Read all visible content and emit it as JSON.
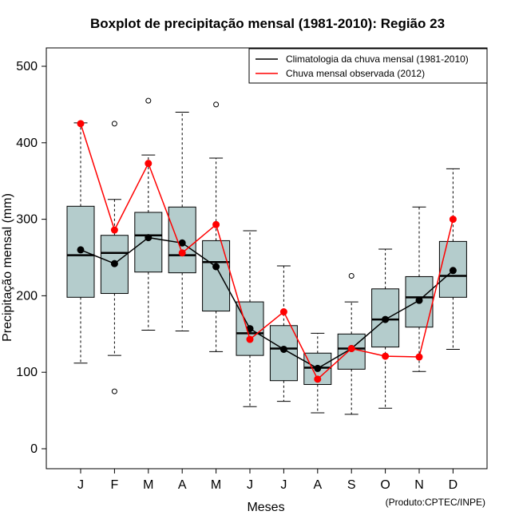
{
  "chart_data": {
    "type": "boxplot",
    "title": "Boxplot de precipitação mensal (1981-2010): Região 23",
    "xlabel": "Meses",
    "ylabel": "Precipitação mensal (mm)",
    "ylim": [
      -25,
      525
    ],
    "yticks": [
      0,
      100,
      200,
      300,
      400,
      500
    ],
    "categories": [
      "J",
      "F",
      "M",
      "A",
      "M",
      "J",
      "J",
      "A",
      "S",
      "O",
      "N",
      "D"
    ],
    "boxes": [
      {
        "whisker_low": 112,
        "q1": 198,
        "median": 253,
        "q3": 317,
        "whisker_high": 426,
        "outliers": []
      },
      {
        "whisker_low": 122,
        "q1": 203,
        "median": 256,
        "q3": 279,
        "whisker_high": 326,
        "outliers": [
          75,
          425
        ]
      },
      {
        "whisker_low": 155,
        "q1": 231,
        "median": 279,
        "q3": 309,
        "whisker_high": 384,
        "outliers": [
          455
        ]
      },
      {
        "whisker_low": 154,
        "q1": 230,
        "median": 253,
        "q3": 316,
        "whisker_high": 440,
        "outliers": []
      },
      {
        "whisker_low": 127,
        "q1": 180,
        "median": 244,
        "q3": 272,
        "whisker_high": 380,
        "outliers": [
          450
        ]
      },
      {
        "whisker_low": 55,
        "q1": 122,
        "median": 151,
        "q3": 192,
        "whisker_high": 285,
        "outliers": []
      },
      {
        "whisker_low": 62,
        "q1": 89,
        "median": 131,
        "q3": 161,
        "whisker_high": 239,
        "outliers": []
      },
      {
        "whisker_low": 47,
        "q1": 84,
        "median": 106,
        "q3": 125,
        "whisker_high": 151,
        "outliers": []
      },
      {
        "whisker_low": 45,
        "q1": 104,
        "median": 131,
        "q3": 150,
        "whisker_high": 192,
        "outliers": [
          226
        ]
      },
      {
        "whisker_low": 53,
        "q1": 133,
        "median": 169,
        "q3": 209,
        "whisker_high": 261,
        "outliers": []
      },
      {
        "whisker_low": 101,
        "q1": 159,
        "median": 198,
        "q3": 225,
        "whisker_high": 316,
        "outliers": []
      },
      {
        "whisker_low": 130,
        "q1": 198,
        "median": 226,
        "q3": 271,
        "whisker_high": 366,
        "outliers": []
      }
    ],
    "series": [
      {
        "name": "Climatologia da chuva mensal (1981-2010)",
        "color": "#000000",
        "values": [
          260,
          242,
          276,
          269,
          238,
          157,
          130,
          105,
          131,
          169,
          194,
          233
        ]
      },
      {
        "name": "Chuva mensal observada (2012)",
        "color": "#ff0000",
        "values": [
          425,
          286,
          373,
          256,
          293,
          143,
          179,
          91,
          131,
          121,
          120,
          300
        ]
      }
    ],
    "legend_position": "top-right",
    "box_fill": "#b4cccc",
    "credit": "(Produto:CPTEC/INPE)"
  }
}
